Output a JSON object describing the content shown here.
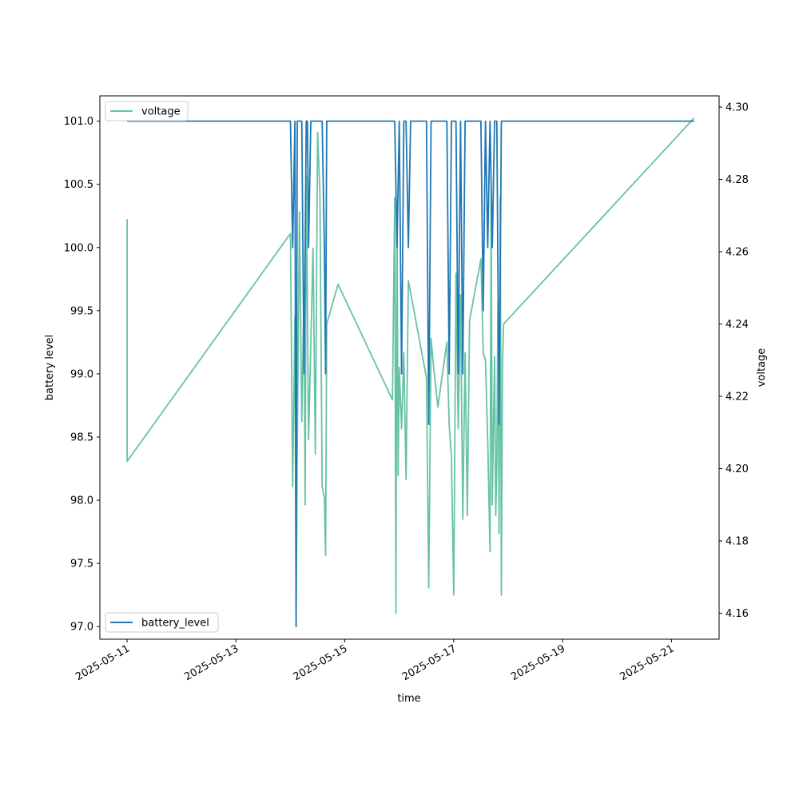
{
  "chart_data": {
    "type": "line",
    "xlabel": "time",
    "y_left_label": "battery level",
    "y_right_label": "voltage",
    "x_range": [
      "2025-05-10T12:00",
      "2025-05-21T21:00"
    ],
    "x_ticks": [
      "2025-05-11",
      "2025-05-13",
      "2025-05-15",
      "2025-05-17",
      "2025-05-19",
      "2025-05-21"
    ],
    "y_left_range": [
      96.9,
      101.2
    ],
    "y_left_ticks": [
      "97.0",
      "97.5",
      "98.0",
      "98.5",
      "99.0",
      "99.5",
      "100.0",
      "100.5",
      "101.0"
    ],
    "y_right_range": [
      4.1528,
      4.3031
    ],
    "y_right_ticks": [
      "4.16",
      "4.18",
      "4.20",
      "4.22",
      "4.24",
      "4.26",
      "4.28",
      "4.30"
    ],
    "grid": false,
    "legends": [
      {
        "position": "upper-left",
        "label": "voltage"
      },
      {
        "position": "lower-left",
        "label": "battery_level"
      }
    ],
    "series": [
      {
        "name": "battery_level",
        "axis": "left",
        "color": "#1f77b4",
        "points": [
          [
            "2025-05-11T00:00",
            101
          ],
          [
            "2025-05-14T00:00",
            101
          ],
          [
            "2025-05-14T01:00",
            100
          ],
          [
            "2025-05-14T02:00",
            101
          ],
          [
            "2025-05-14T02:30",
            97
          ],
          [
            "2025-05-14T03:00",
            101
          ],
          [
            "2025-05-14T05:00",
            101
          ],
          [
            "2025-05-14T06:00",
            99
          ],
          [
            "2025-05-14T07:00",
            101
          ],
          [
            "2025-05-14T07:30",
            101
          ],
          [
            "2025-05-14T08:00",
            100
          ],
          [
            "2025-05-14T09:00",
            101
          ],
          [
            "2025-05-14T14:00",
            101
          ],
          [
            "2025-05-14T15:00",
            100
          ],
          [
            "2025-05-14T15:30",
            99
          ],
          [
            "2025-05-14T16:00",
            101
          ],
          [
            "2025-05-15T22:00",
            101
          ],
          [
            "2025-05-15T23:00",
            100
          ],
          [
            "2025-05-16T00:00",
            101
          ],
          [
            "2025-05-16T01:00",
            99
          ],
          [
            "2025-05-16T02:00",
            101
          ],
          [
            "2025-05-16T03:00",
            101
          ],
          [
            "2025-05-16T04:00",
            100
          ],
          [
            "2025-05-16T05:00",
            101
          ],
          [
            "2025-05-16T12:00",
            101
          ],
          [
            "2025-05-16T13:00",
            98.6
          ],
          [
            "2025-05-16T14:00",
            101
          ],
          [
            "2025-05-16T21:00",
            101
          ],
          [
            "2025-05-16T22:00",
            99
          ],
          [
            "2025-05-16T23:00",
            101
          ],
          [
            "2025-05-17T01:00",
            101
          ],
          [
            "2025-05-17T02:00",
            99
          ],
          [
            "2025-05-17T03:00",
            101
          ],
          [
            "2025-05-17T04:00",
            99
          ],
          [
            "2025-05-17T05:00",
            101
          ],
          [
            "2025-05-17T12:00",
            101
          ],
          [
            "2025-05-17T13:00",
            99.5
          ],
          [
            "2025-05-17T14:00",
            101
          ],
          [
            "2025-05-17T15:00",
            100
          ],
          [
            "2025-05-17T16:00",
            101
          ],
          [
            "2025-05-17T17:00",
            100
          ],
          [
            "2025-05-17T18:00",
            101
          ],
          [
            "2025-05-17T19:00",
            101
          ],
          [
            "2025-05-17T20:00",
            98.6
          ],
          [
            "2025-05-17T21:00",
            101
          ],
          [
            "2025-05-21T10:00",
            101
          ]
        ]
      },
      {
        "name": "voltage",
        "axis": "right",
        "color": "#66c2a5",
        "points": [
          [
            "2025-05-11T00:00",
            4.269
          ],
          [
            "2025-05-11T00:00",
            4.202
          ],
          [
            "2025-05-14T00:00",
            4.265
          ],
          [
            "2025-05-14T01:00",
            4.195
          ],
          [
            "2025-05-14T02:00",
            4.242
          ],
          [
            "2025-05-14T02:30",
            4.16
          ],
          [
            "2025-05-14T03:00",
            4.204
          ],
          [
            "2025-05-14T04:00",
            4.271
          ],
          [
            "2025-05-14T05:00",
            4.213
          ],
          [
            "2025-05-14T06:00",
            4.25
          ],
          [
            "2025-05-14T06:30",
            4.19
          ],
          [
            "2025-05-14T07:00",
            4.281
          ],
          [
            "2025-05-14T08:00",
            4.208
          ],
          [
            "2025-05-14T10:00",
            4.261
          ],
          [
            "2025-05-14T11:00",
            4.204
          ],
          [
            "2025-05-14T12:00",
            4.293
          ],
          [
            "2025-05-14T13:00",
            4.276
          ],
          [
            "2025-05-14T14:00",
            4.195
          ],
          [
            "2025-05-14T15:00",
            4.192
          ],
          [
            "2025-05-14T15:30",
            4.176
          ],
          [
            "2025-05-14T16:00",
            4.24
          ],
          [
            "2025-05-14T21:00",
            4.251
          ],
          [
            "2025-05-15T21:00",
            4.219
          ],
          [
            "2025-05-15T22:00",
            4.275
          ],
          [
            "2025-05-15T22:30",
            4.16
          ],
          [
            "2025-05-15T23:00",
            4.27
          ],
          [
            "2025-05-15T23:30",
            4.198
          ],
          [
            "2025-05-16T00:00",
            4.228
          ],
          [
            "2025-05-16T01:00",
            4.211
          ],
          [
            "2025-05-16T02:00",
            4.232
          ],
          [
            "2025-05-16T03:00",
            4.197
          ],
          [
            "2025-05-16T04:00",
            4.252
          ],
          [
            "2025-05-16T12:00",
            4.225
          ],
          [
            "2025-05-16T13:00",
            4.167
          ],
          [
            "2025-05-16T14:00",
            4.236
          ],
          [
            "2025-05-16T15:00",
            4.229
          ],
          [
            "2025-05-16T17:00",
            4.217
          ],
          [
            "2025-05-16T21:00",
            4.235
          ],
          [
            "2025-05-16T22:00",
            4.212
          ],
          [
            "2025-05-16T23:00",
            4.203
          ],
          [
            "2025-05-17T00:00",
            4.165
          ],
          [
            "2025-05-17T01:00",
            4.254
          ],
          [
            "2025-05-17T02:00",
            4.211
          ],
          [
            "2025-05-17T03:00",
            4.248
          ],
          [
            "2025-05-17T04:00",
            4.186
          ],
          [
            "2025-05-17T05:00",
            4.232
          ],
          [
            "2025-05-17T06:00",
            4.187
          ],
          [
            "2025-05-17T07:00",
            4.241
          ],
          [
            "2025-05-17T12:00",
            4.258
          ],
          [
            "2025-05-17T13:00",
            4.232
          ],
          [
            "2025-05-17T14:00",
            4.23
          ],
          [
            "2025-05-17T15:00",
            4.208
          ],
          [
            "2025-05-17T16:00",
            4.177
          ],
          [
            "2025-05-17T16:30",
            4.275
          ],
          [
            "2025-05-17T17:00",
            4.19
          ],
          [
            "2025-05-17T18:00",
            4.231
          ],
          [
            "2025-05-17T18:30",
            4.187
          ],
          [
            "2025-05-17T19:00",
            4.201
          ],
          [
            "2025-05-17T19:30",
            4.246
          ],
          [
            "2025-05-17T20:00",
            4.182
          ],
          [
            "2025-05-17T20:30",
            4.275
          ],
          [
            "2025-05-17T21:00",
            4.165
          ],
          [
            "2025-05-17T21:30",
            4.229
          ],
          [
            "2025-05-17T22:00",
            4.24
          ],
          [
            "2025-05-21T10:00",
            4.297
          ]
        ]
      }
    ]
  }
}
